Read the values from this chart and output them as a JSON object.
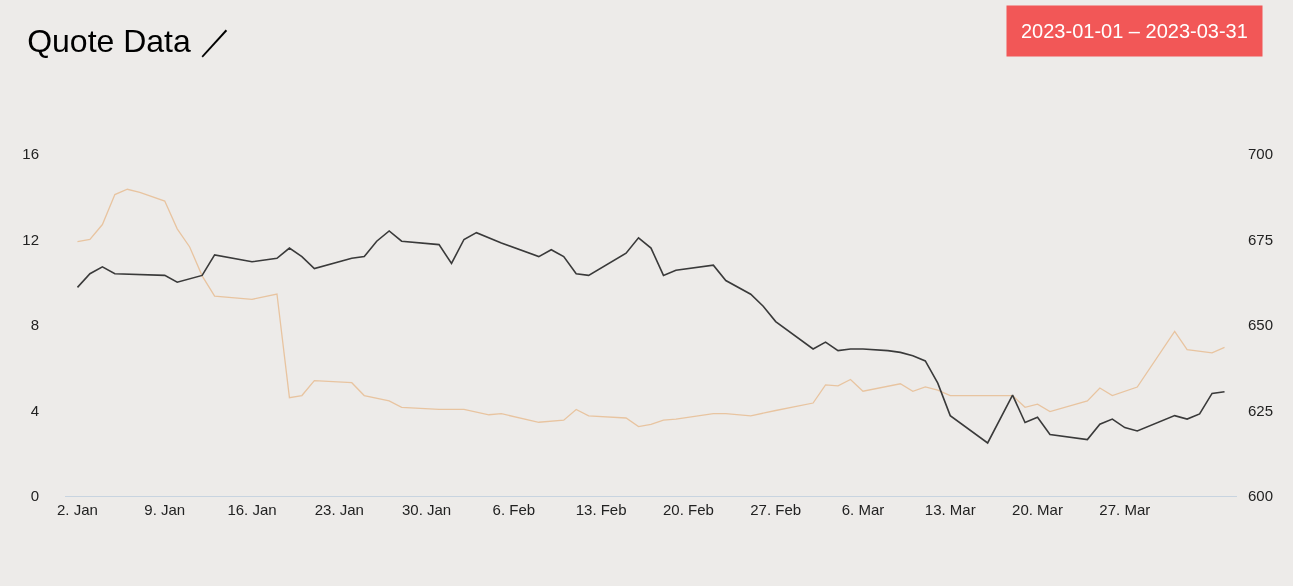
{
  "chart_data": {
    "type": "line",
    "title": "Quote Data ／",
    "annotations": [
      "2023-01-01 – 2023-03-31"
    ],
    "xlim": [
      "2023-01-01",
      "2023-04-05"
    ],
    "xticks": [
      {
        "value": "2023-01-02",
        "label": "2. Jan"
      },
      {
        "value": "2023-01-09",
        "label": "9. Jan"
      },
      {
        "value": "2023-01-16",
        "label": "16. Jan"
      },
      {
        "value": "2023-01-23",
        "label": "23. Jan"
      },
      {
        "value": "2023-01-30",
        "label": "30. Jan"
      },
      {
        "value": "2023-02-06",
        "label": "6. Feb"
      },
      {
        "value": "2023-02-13",
        "label": "13. Feb"
      },
      {
        "value": "2023-02-20",
        "label": "20. Feb"
      },
      {
        "value": "2023-02-27",
        "label": "27. Feb"
      },
      {
        "value": "2023-03-06",
        "label": "6. Mar"
      },
      {
        "value": "2023-03-13",
        "label": "13. Mar"
      },
      {
        "value": "2023-03-20",
        "label": "20. Mar"
      },
      {
        "value": "2023-03-27",
        "label": "27. Mar"
      }
    ],
    "ylim": [
      0,
      16
    ],
    "yticks": [
      0,
      4,
      8,
      12,
      16
    ],
    "y2lim": [
      600,
      700
    ],
    "y2ticks": [
      600,
      625,
      650,
      675,
      700
    ],
    "grid": false,
    "series": [
      {
        "color": "#e8c4a0",
        "x": [
          "2023-01-02",
          "2023-01-03",
          "2023-01-04",
          "2023-01-05",
          "2023-01-06",
          "2023-01-07",
          "2023-01-09",
          "2023-01-10",
          "2023-01-11",
          "2023-01-12",
          "2023-01-13",
          "2023-01-16",
          "2023-01-18",
          "2023-01-19",
          "2023-01-20",
          "2023-01-21",
          "2023-01-24",
          "2023-01-25",
          "2023-01-27",
          "2023-01-28",
          "2023-01-31",
          "2023-02-02",
          "2023-02-04",
          "2023-02-05",
          "2023-02-08",
          "2023-02-10",
          "2023-02-11",
          "2023-02-12",
          "2023-02-15",
          "2023-02-16",
          "2023-02-17",
          "2023-02-18",
          "2023-02-19",
          "2023-02-22",
          "2023-02-23",
          "2023-02-25",
          "2023-02-27",
          "2023-03-02",
          "2023-03-03",
          "2023-03-04",
          "2023-03-05",
          "2023-03-06",
          "2023-03-09",
          "2023-03-10",
          "2023-03-11",
          "2023-03-12",
          "2023-03-13",
          "2023-03-18",
          "2023-03-19",
          "2023-03-20",
          "2023-03-21",
          "2023-03-24",
          "2023-03-25",
          "2023-03-26",
          "2023-03-28",
          "2023-03-31",
          "2023-04-01",
          "2023-04-03",
          "2023-04-04"
        ],
        "values": [
          11.9,
          12.0,
          12.7,
          14.1,
          14.35,
          14.2,
          13.8,
          12.5,
          11.65,
          10.3,
          9.35,
          9.2,
          9.45,
          4.6,
          4.7,
          5.4,
          5.3,
          4.7,
          4.45,
          4.15,
          4.05,
          4.05,
          3.8,
          3.85,
          3.45,
          3.55,
          4.05,
          3.75,
          3.65,
          3.25,
          3.35,
          3.55,
          3.6,
          3.85,
          3.85,
          3.75,
          4.0,
          4.35,
          5.2,
          5.15,
          5.45,
          4.9,
          5.25,
          4.9,
          5.1,
          4.95,
          4.7,
          4.7,
          4.15,
          4.3,
          3.95,
          4.45,
          5.05,
          4.7,
          5.1,
          7.7,
          6.85,
          6.7,
          6.95
        ]
      },
      {
        "color": "#3a3a3a",
        "axis": "y2",
        "x": [
          "2023-01-02",
          "2023-01-03",
          "2023-01-04",
          "2023-01-05",
          "2023-01-09",
          "2023-01-10",
          "2023-01-12",
          "2023-01-13",
          "2023-01-16",
          "2023-01-18",
          "2023-01-19",
          "2023-01-20",
          "2023-01-21",
          "2023-01-24",
          "2023-01-25",
          "2023-01-26",
          "2023-01-27",
          "2023-01-28",
          "2023-01-31",
          "2023-02-01",
          "2023-02-02",
          "2023-02-03",
          "2023-02-05",
          "2023-02-08",
          "2023-02-09",
          "2023-02-10",
          "2023-02-11",
          "2023-02-12",
          "2023-02-15",
          "2023-02-16",
          "2023-02-17",
          "2023-02-18",
          "2023-02-19",
          "2023-02-22",
          "2023-02-23",
          "2023-02-25",
          "2023-02-26",
          "2023-02-27",
          "2023-03-02",
          "2023-03-03",
          "2023-03-04",
          "2023-03-05",
          "2023-03-06",
          "2023-03-08",
          "2023-03-09",
          "2023-03-10",
          "2023-03-11",
          "2023-03-12",
          "2023-03-13",
          "2023-03-16",
          "2023-03-18",
          "2023-03-19",
          "2023-03-20",
          "2023-03-21",
          "2023-03-24",
          "2023-03-25",
          "2023-03-26",
          "2023-03-27",
          "2023-03-28",
          "2023-03-31",
          "2023-04-01",
          "2023-04-02",
          "2023-04-03",
          "2023-04-04"
        ],
        "values": [
          661,
          665,
          667,
          665,
          664.5,
          662.5,
          664.5,
          670.5,
          668.5,
          669.5,
          672.5,
          670,
          666.5,
          669.5,
          670,
          674.5,
          677.5,
          674.5,
          673.5,
          668,
          675,
          677,
          674,
          670,
          672,
          670,
          665,
          664.5,
          671,
          675.5,
          672.5,
          664.5,
          666,
          667.5,
          663,
          659,
          655.5,
          651,
          643,
          645,
          642.5,
          643,
          643,
          642.5,
          642,
          641,
          639.5,
          633,
          623.5,
          615.5,
          629.5,
          621.5,
          623,
          618,
          616.5,
          621,
          622.5,
          620,
          619,
          623.5,
          622.5,
          624,
          630,
          630.5
        ]
      }
    ]
  }
}
